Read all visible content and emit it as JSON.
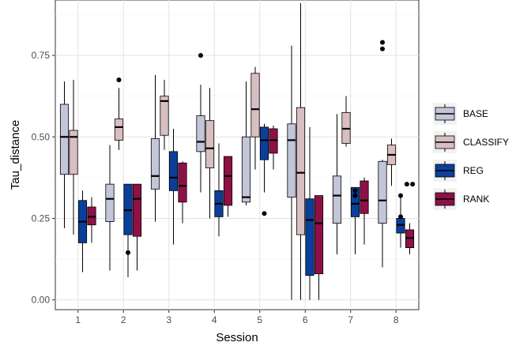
{
  "chart_data": {
    "type": "boxplot",
    "title": "",
    "xlabel": "Session",
    "ylabel": "Tau_distance",
    "ylim": [
      -0.03,
      0.92
    ],
    "yticks": [
      0.0,
      0.25,
      0.5,
      0.75
    ],
    "ytick_labels": [
      "0.00",
      "0.25",
      "0.50",
      "0.75"
    ],
    "categories": [
      "1",
      "2",
      "3",
      "4",
      "5",
      "6",
      "7",
      "8"
    ],
    "grid": true,
    "legend_position": "right",
    "series": [
      {
        "name": "BASE",
        "color": "#c2c6d8",
        "boxes": [
          {
            "min": 0.22,
            "q1": 0.385,
            "median": 0.5,
            "q3": 0.6,
            "max": 0.67,
            "outliers": []
          },
          {
            "min": 0.09,
            "q1": 0.24,
            "median": 0.31,
            "q3": 0.355,
            "max": 0.475,
            "outliers": []
          },
          {
            "min": 0.24,
            "q1": 0.34,
            "median": 0.38,
            "q3": 0.495,
            "max": 0.69,
            "outliers": []
          },
          {
            "min": 0.33,
            "q1": 0.455,
            "median": 0.485,
            "q3": 0.565,
            "max": 0.66,
            "outliers": [
              0.75
            ]
          },
          {
            "min": 0.29,
            "q1": 0.3,
            "median": 0.315,
            "q3": 0.5,
            "max": 0.67,
            "outliers": []
          },
          {
            "min": 0.0,
            "q1": 0.315,
            "median": 0.49,
            "q3": 0.54,
            "max": 0.78,
            "outliers": []
          },
          {
            "min": 0.14,
            "q1": 0.235,
            "median": 0.32,
            "q3": 0.38,
            "max": 0.57,
            "outliers": []
          },
          {
            "min": 0.1,
            "q1": 0.235,
            "median": 0.305,
            "q3": 0.425,
            "max": 0.43,
            "outliers": [
              0.77,
              0.79
            ]
          }
        ]
      },
      {
        "name": "CLASSIFY",
        "color": "#d9bfc2",
        "boxes": [
          {
            "min": 0.2,
            "q1": 0.385,
            "median": 0.5,
            "q3": 0.52,
            "max": 0.675,
            "outliers": []
          },
          {
            "min": 0.46,
            "q1": 0.49,
            "median": 0.53,
            "q3": 0.555,
            "max": 0.65,
            "outliers": [
              0.675
            ]
          },
          {
            "min": 0.46,
            "q1": 0.505,
            "median": 0.61,
            "q3": 0.625,
            "max": 0.675,
            "outliers": []
          },
          {
            "min": 0.25,
            "q1": 0.405,
            "median": 0.465,
            "q3": 0.55,
            "max": 0.65,
            "outliers": []
          },
          {
            "min": 0.4,
            "q1": 0.5,
            "median": 0.585,
            "q3": 0.695,
            "max": 0.715,
            "outliers": []
          },
          {
            "min": 0.0,
            "q1": 0.2,
            "median": 0.39,
            "q3": 0.59,
            "max": 0.91,
            "outliers": []
          },
          {
            "min": 0.47,
            "q1": 0.48,
            "median": 0.525,
            "q3": 0.575,
            "max": 0.625,
            "outliers": []
          },
          {
            "min": 0.35,
            "q1": 0.415,
            "median": 0.445,
            "q3": 0.475,
            "max": 0.495,
            "outliers": []
          }
        ]
      },
      {
        "name": "REG",
        "color": "#0b3f9b",
        "boxes": [
          {
            "min": 0.085,
            "q1": 0.175,
            "median": 0.24,
            "q3": 0.305,
            "max": 0.335,
            "outliers": []
          },
          {
            "min": 0.07,
            "q1": 0.2,
            "median": 0.275,
            "q3": 0.355,
            "max": 0.355,
            "outliers": [
              0.145
            ]
          },
          {
            "min": 0.17,
            "q1": 0.335,
            "median": 0.375,
            "q3": 0.455,
            "max": 0.525,
            "outliers": []
          },
          {
            "min": 0.195,
            "q1": 0.255,
            "median": 0.295,
            "q3": 0.335,
            "max": 0.48,
            "outliers": []
          },
          {
            "min": 0.33,
            "q1": 0.43,
            "median": 0.49,
            "q3": 0.53,
            "max": 0.54,
            "outliers": [
              0.265
            ]
          },
          {
            "min": 0.0,
            "q1": 0.075,
            "median": 0.245,
            "q3": 0.31,
            "max": 0.53,
            "outliers": []
          },
          {
            "min": 0.14,
            "q1": 0.255,
            "median": 0.295,
            "q3": 0.345,
            "max": 0.345,
            "outliers": [
              0.32,
              0.335
            ]
          },
          {
            "min": 0.16,
            "q1": 0.205,
            "median": 0.23,
            "q3": 0.25,
            "max": 0.315,
            "outliers": [
              0.255,
              0.32
            ]
          }
        ]
      },
      {
        "name": "RANK",
        "color": "#8d1147",
        "boxes": [
          {
            "min": 0.175,
            "q1": 0.23,
            "median": 0.255,
            "q3": 0.285,
            "max": 0.315,
            "outliers": []
          },
          {
            "min": 0.09,
            "q1": 0.195,
            "median": 0.31,
            "q3": 0.355,
            "max": 0.355,
            "outliers": []
          },
          {
            "min": 0.235,
            "q1": 0.3,
            "median": 0.35,
            "q3": 0.42,
            "max": 0.425,
            "outliers": []
          },
          {
            "min": 0.255,
            "q1": 0.29,
            "median": 0.38,
            "q3": 0.44,
            "max": 0.44,
            "outliers": []
          },
          {
            "min": 0.4,
            "q1": 0.45,
            "median": 0.49,
            "q3": 0.525,
            "max": 0.535,
            "outliers": []
          },
          {
            "min": 0.0,
            "q1": 0.08,
            "median": 0.235,
            "q3": 0.32,
            "max": 0.32,
            "outliers": []
          },
          {
            "min": 0.17,
            "q1": 0.265,
            "median": 0.305,
            "q3": 0.365,
            "max": 0.375,
            "outliers": []
          },
          {
            "min": 0.14,
            "q1": 0.16,
            "median": 0.19,
            "q3": 0.215,
            "max": 0.235,
            "outliers": [
              0.355,
              0.355
            ]
          }
        ]
      }
    ]
  }
}
